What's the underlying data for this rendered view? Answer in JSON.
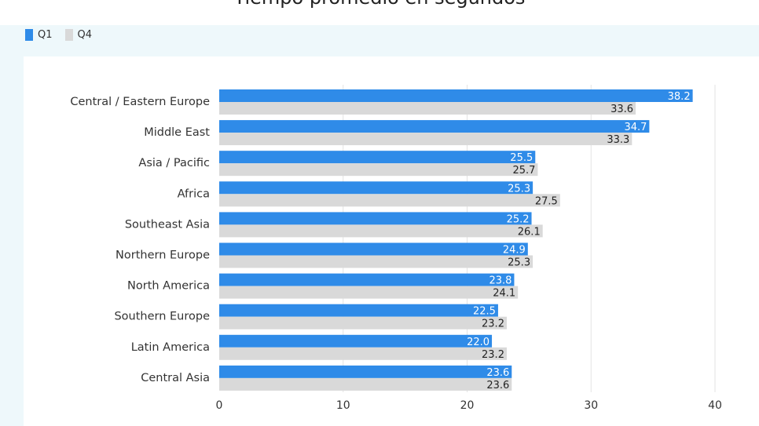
{
  "chart_data": {
    "type": "bar",
    "orientation": "horizontal",
    "title": "Tiempo promedio en segundos",
    "categories": [
      "Central / Eastern Europe",
      "Middle East",
      "Asia / Pacific",
      "Africa",
      "Southeast Asia",
      "Northern Europe",
      "North America",
      "Southern Europe",
      "Latin America",
      "Central Asia"
    ],
    "series": [
      {
        "name": "Q1",
        "color": "#2f8be8",
        "values": [
          38.2,
          34.7,
          25.5,
          25.3,
          25.2,
          24.9,
          23.8,
          22.5,
          22.0,
          23.6
        ]
      },
      {
        "name": "Q4",
        "color": "#d9d9d9",
        "values": [
          33.6,
          33.3,
          25.7,
          27.5,
          26.1,
          25.3,
          24.1,
          23.2,
          23.2,
          23.6
        ]
      }
    ],
    "xlim": [
      0,
      40
    ],
    "xticks": [
      "0",
      "10",
      "20",
      "30",
      "40"
    ],
    "grid": true,
    "legend": "top-left"
  }
}
